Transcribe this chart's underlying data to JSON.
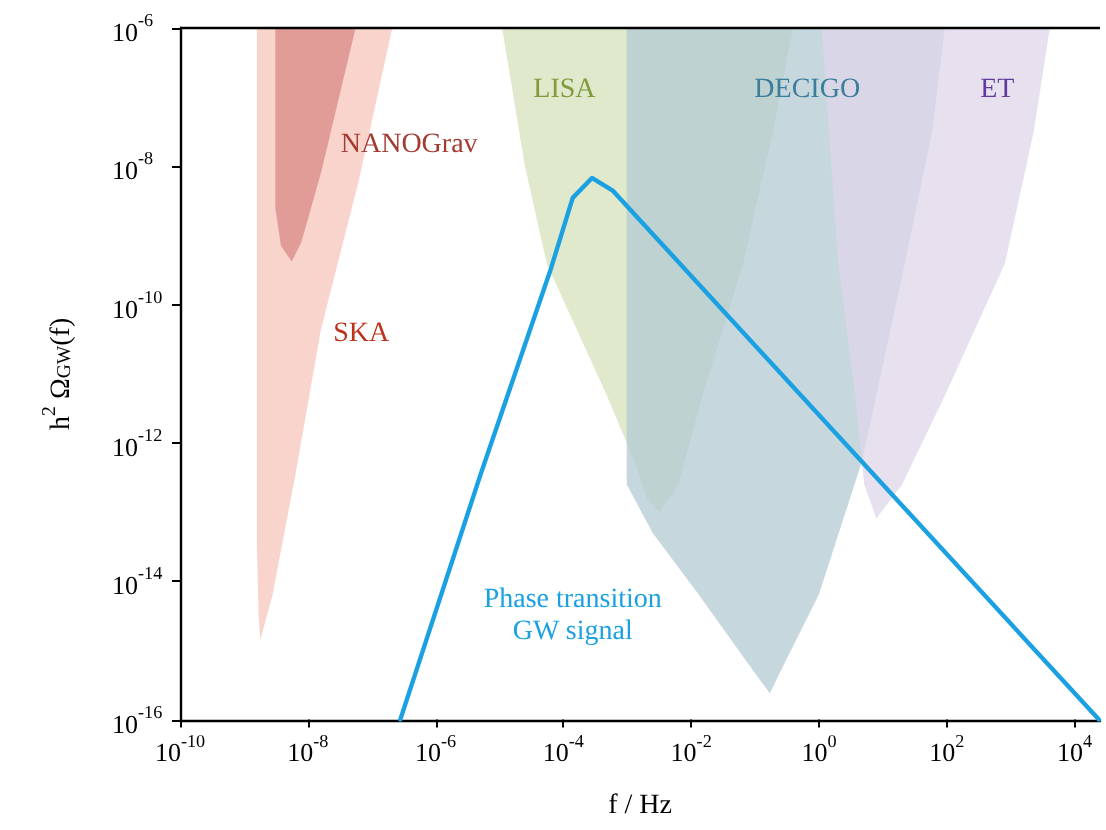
{
  "chart_data": {
    "type": "area",
    "xlabel": "f / Hz",
    "ylabel": "h$^{2}$ Ω$_{GW}$(f)",
    "log": "xy",
    "grid": false,
    "legend": false,
    "xlim": [
      1e-10,
      25000.0
    ],
    "xticks": [
      {
        "value": 1e-10,
        "label": "10$^{-10}$"
      },
      {
        "value": 1e-08,
        "label": "10$^{-8}$"
      },
      {
        "value": 1e-06,
        "label": "10$^{-6}$"
      },
      {
        "value": 0.0001,
        "label": "10$^{-4}$"
      },
      {
        "value": 0.01,
        "label": "10$^{-2}$"
      },
      {
        "value": 1,
        "label": "10$^{0}$"
      },
      {
        "value": 100,
        "label": "10$^{2}$"
      },
      {
        "value": 10000.0,
        "label": "10$^{4}$"
      }
    ],
    "ylim": [
      1e-16,
      1e-06
    ],
    "yticks": [
      {
        "value": 1e-16,
        "label": "10$^{-16}$"
      },
      {
        "value": 1e-14,
        "label": "10$^{-14}$"
      },
      {
        "value": 1e-12,
        "label": "10$^{-12}$"
      },
      {
        "value": 1e-10,
        "label": "10$^{-10}$"
      },
      {
        "value": 1e-08,
        "label": "10$^{-8}$"
      },
      {
        "value": 1e-06,
        "label": "10$^{-6}$"
      }
    ],
    "series": [
      {
        "name": "SKA",
        "color": "#f6c5bc",
        "x": [
          1.6e-09,
          1.6e-09,
          1.7e-09,
          1.8e-09,
          2.8e-09,
          6.3e-09,
          1.6e-08,
          6.3e-08,
          2.1e-07
        ],
        "values": [
          1e-06,
          3.2e-14,
          3.2e-15,
          1.4e-15,
          6.3e-15,
          3.2e-13,
          4.3e-11,
          6.3e-09,
          1e-06
        ]
      },
      {
        "name": "NANOGrav",
        "color": "#d98a84",
        "x": [
          3.1e-09,
          3.1e-09,
          3.8e-09,
          5.6e-09,
          7.9e-09,
          1.6e-08,
          5.6e-08
        ],
        "values": [
          1e-06,
          2.5e-09,
          7.1e-10,
          4.2e-10,
          7.9e-10,
          7.9e-09,
          1e-06
        ]
      },
      {
        "name": "LISA",
        "color": "#d6e1bb",
        "x": [
          1.1e-05,
          2.5e-05,
          5.5e-05,
          0.00048,
          0.0013,
          0.002,
          0.0032,
          0.0063,
          0.015,
          0.065,
          0.19,
          0.39
        ],
        "values": [
          1e-06,
          1e-08,
          3.9e-10,
          4.8e-12,
          5.4e-13,
          1.6e-13,
          1e-13,
          2.5e-13,
          4.8e-12,
          3.9e-10,
          3.2e-08,
          1e-06
        ]
      },
      {
        "name": "DECIGO",
        "color": "#b3c9d3",
        "x": [
          0.00098,
          0.00098,
          0.0025,
          0.013,
          0.079,
          0.17,
          0.32,
          1,
          4.7,
          22,
          59,
          93
        ],
        "values": [
          1e-06,
          2.5e-13,
          5e-14,
          6.5e-15,
          6.3e-16,
          2.4e-16,
          7.9e-16,
          6.5e-15,
          5.4e-13,
          3.9e-10,
          3.2e-08,
          1e-06
        ]
      },
      {
        "name": "ET",
        "color": "#ddd5e9",
        "x": [
          1.1,
          2.0,
          3.7,
          5.1,
          7.9,
          20,
          93,
          810,
          2300,
          4100
        ],
        "values": [
          1e-06,
          3.9e-10,
          4.8e-12,
          2.5e-13,
          8.1e-14,
          2.5e-13,
          4.8e-12,
          3.9e-10,
          3.2e-08,
          1e-06
        ]
      },
      {
        "type": "line",
        "name": "Phase transition\nGW signal",
        "color": "#1ba1e2",
        "x": [
          2.8e-07,
          5e-06,
          6.3e-05,
          0.00014,
          0.00028,
          0.0006,
          24000.0
        ],
        "values": [
          1e-16,
          3.4e-13,
          3.2e-10,
          3.5e-09,
          6.8e-09,
          4.4e-09,
          1e-16
        ]
      }
    ]
  }
}
